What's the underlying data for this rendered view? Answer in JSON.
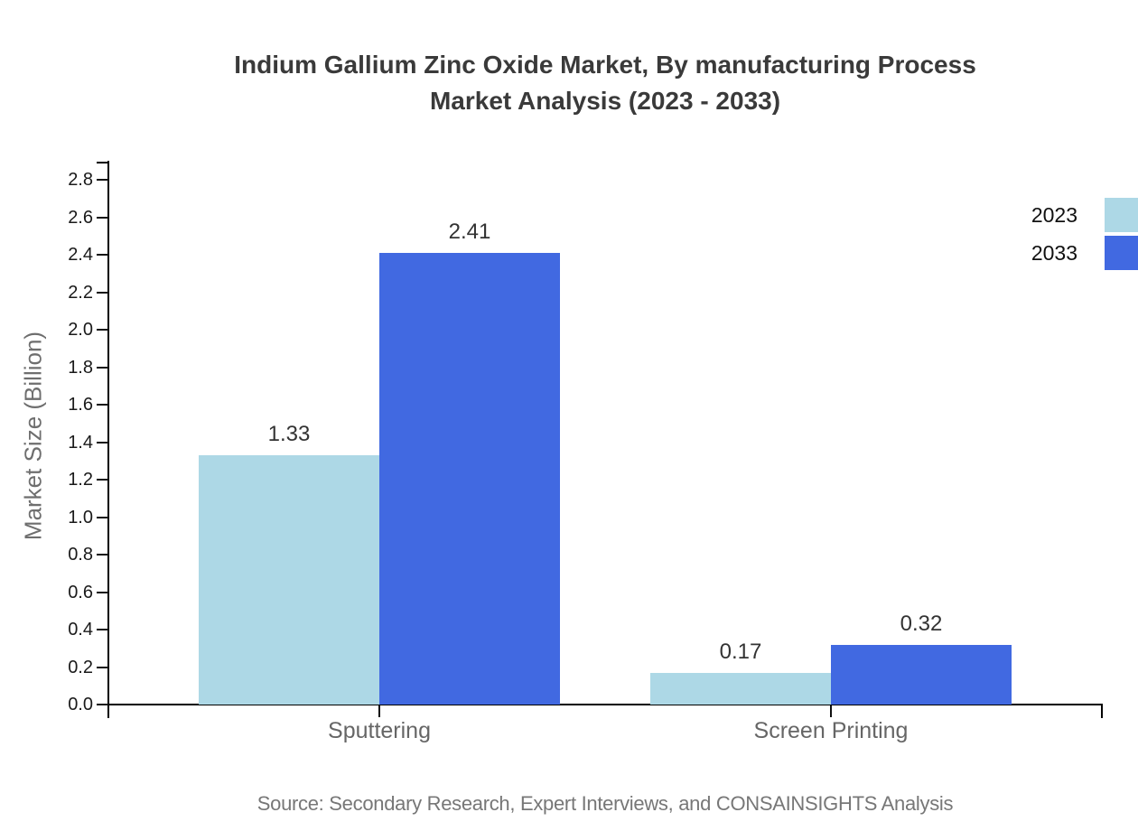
{
  "chart": {
    "title_line1": "Indium Gallium Zinc Oxide Market, By manufacturing Process",
    "title_line2": "Market Analysis (2023 - 2033)",
    "ylabel": "Market Size (Billion)",
    "source": "Source: Secondary Research, Expert Interviews, and CONSAINSIGHTS Analysis"
  },
  "chart_data": {
    "type": "bar",
    "title": "Indium Gallium Zinc Oxide Market, By manufacturing Process Market Analysis (2023 - 2033)",
    "categories": [
      "Sputtering",
      "Screen Printing"
    ],
    "series": [
      {
        "name": "2023",
        "color": "#ADD8E6",
        "values": [
          1.33,
          0.17
        ]
      },
      {
        "name": "2033",
        "color": "#4169E1",
        "values": [
          2.41,
          0.32
        ]
      }
    ],
    "xlabel": "",
    "ylabel": "Market Size (Billion)",
    "ylim": [
      0,
      2.9
    ],
    "yticks": [
      0.0,
      0.2,
      0.4,
      0.6,
      0.8,
      1.0,
      1.2,
      1.4,
      1.6,
      1.8,
      2.0,
      2.2,
      2.4,
      2.6,
      2.8
    ],
    "grid": false,
    "legend_position": "top-right",
    "value_label_format": "0.00",
    "source": "Source: Secondary Research, Expert Interviews, and CONSAINSIGHTS Analysis"
  }
}
